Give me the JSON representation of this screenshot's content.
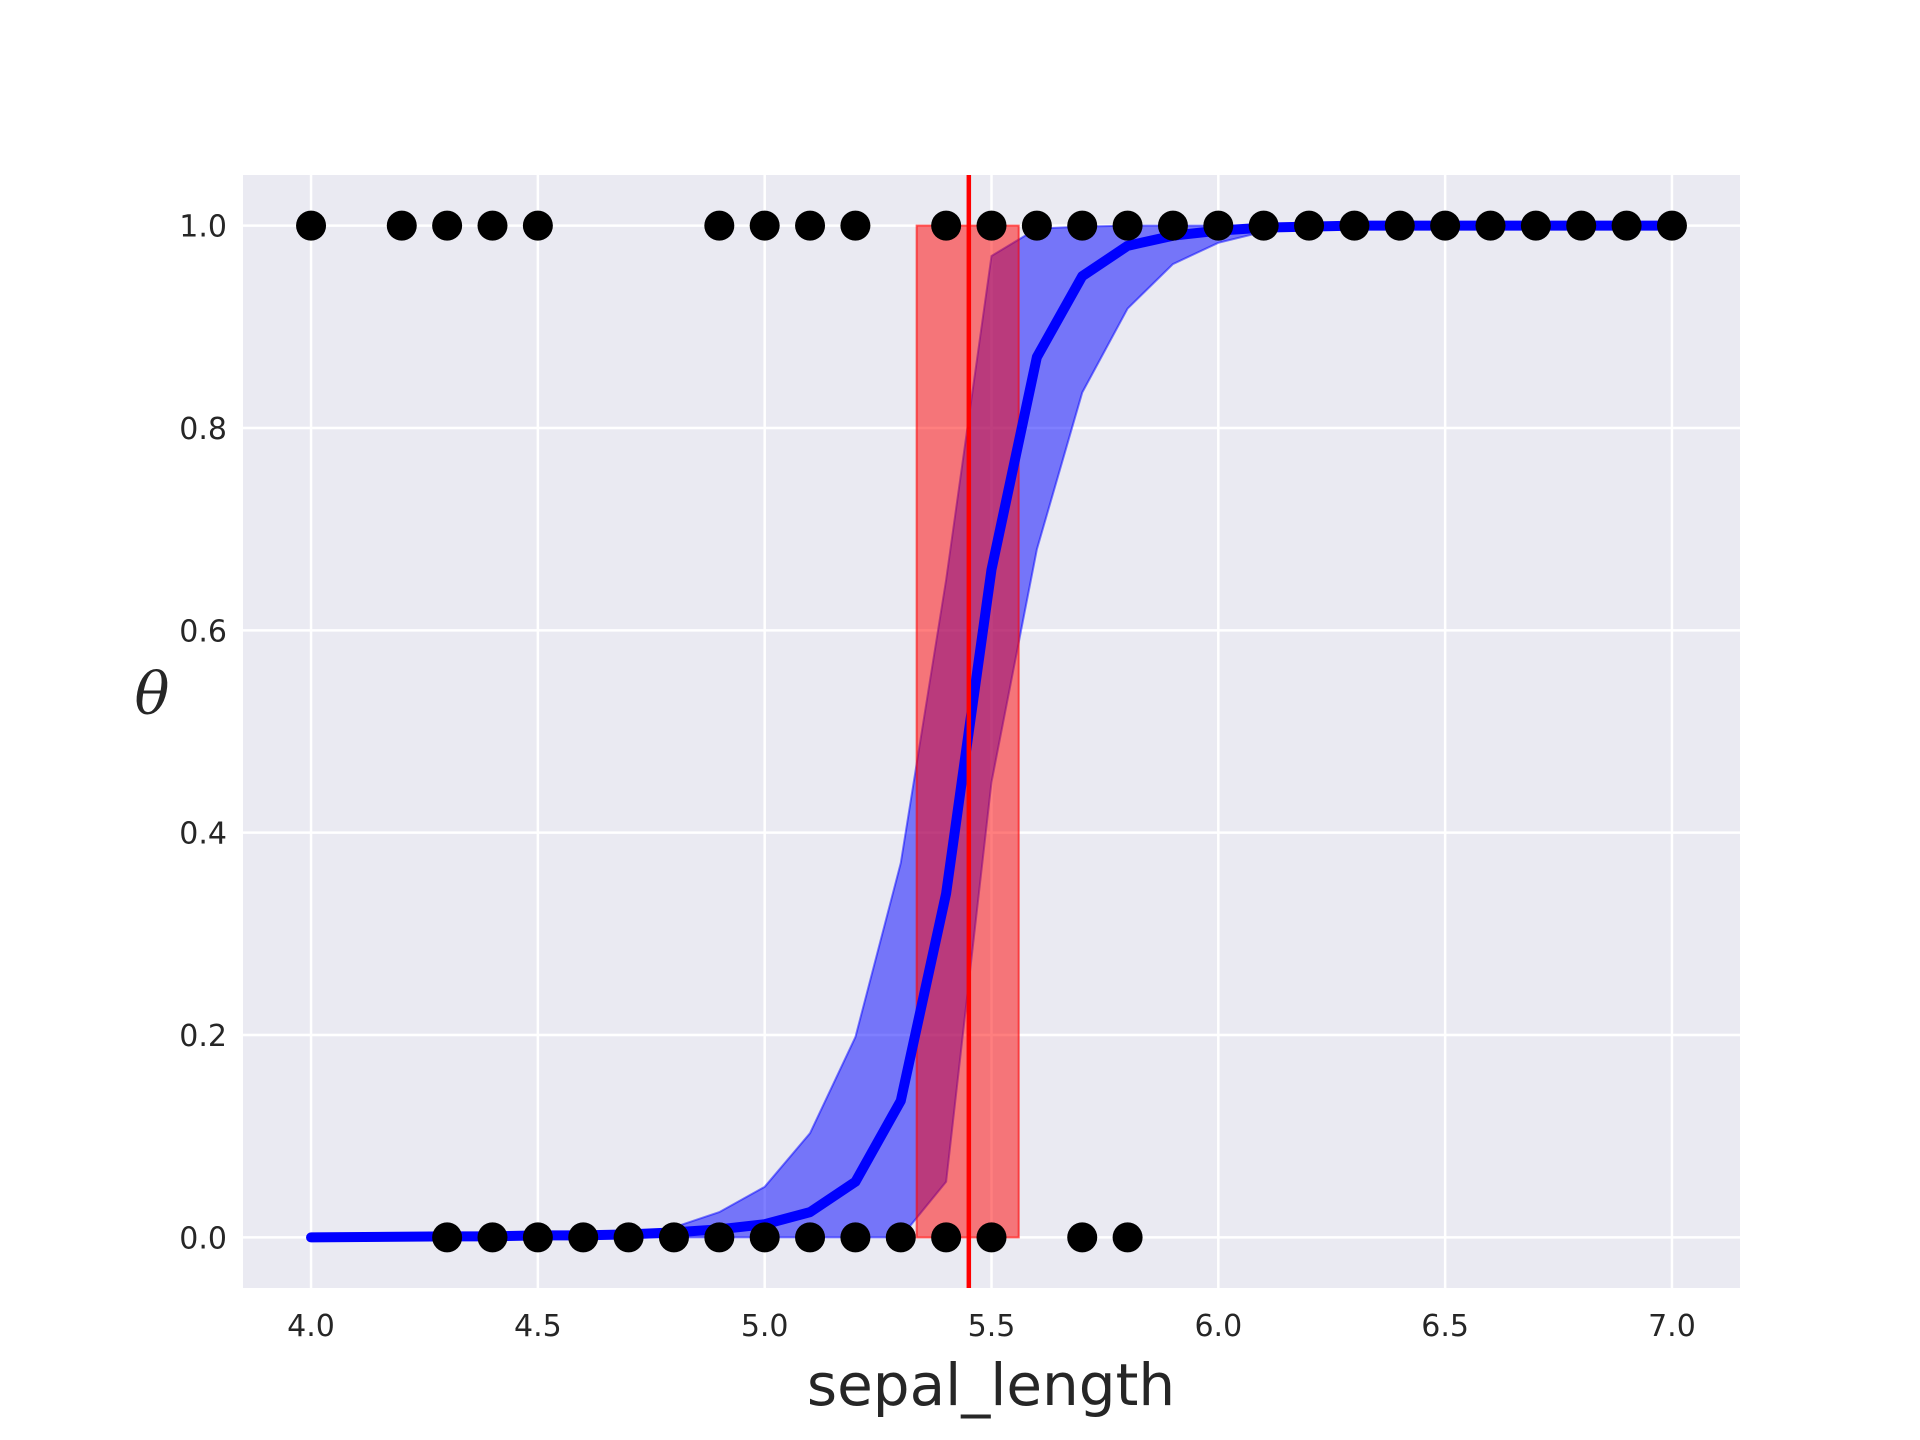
{
  "chart_data": {
    "type": "line",
    "title": "",
    "xlabel": "sepal_length",
    "ylabel": "θ",
    "xlim": [
      3.85,
      7.15
    ],
    "ylim": [
      -0.05,
      1.05
    ],
    "xticks": [
      "4.0",
      "4.5",
      "5.0",
      "5.5",
      "6.0",
      "6.5",
      "7.0"
    ],
    "yticks": [
      "0.0",
      "0.2",
      "0.4",
      "0.6",
      "0.8",
      "1.0"
    ],
    "grid": true,
    "legend": "none",
    "colors": {
      "background": "#eaeaf2",
      "grid": "#ffffff",
      "mean_line": "#0000ff",
      "band": "#0000ff",
      "boundary_line": "#ff0000",
      "boundary_band": "#ff0000",
      "points": "#000000"
    },
    "mean_curve": {
      "x": [
        4.0,
        4.3,
        4.4,
        4.5,
        4.6,
        4.7,
        4.8,
        4.9,
        5.0,
        5.1,
        5.2,
        5.3,
        5.4,
        5.5,
        5.6,
        5.7,
        5.8,
        5.9,
        6.0,
        6.1,
        6.2,
        6.3,
        6.4,
        6.5,
        6.6,
        6.7,
        6.8,
        6.9,
        7.0
      ],
      "y": [
        0.0,
        0.001,
        0.001,
        0.002,
        0.002,
        0.003,
        0.005,
        0.008,
        0.013,
        0.025,
        0.055,
        0.135,
        0.34,
        0.66,
        0.87,
        0.95,
        0.98,
        0.99,
        0.995,
        0.998,
        0.999,
        1.0,
        1.0,
        1.0,
        1.0,
        1.0,
        1.0,
        1.0,
        1.0
      ]
    },
    "hpd_band": {
      "x": [
        4.7,
        4.8,
        4.9,
        5.0,
        5.1,
        5.2,
        5.3,
        5.4,
        5.5,
        5.6,
        5.7,
        5.8,
        5.9,
        6.0,
        6.1
      ],
      "lower": [
        0.0,
        0.0,
        0.0,
        0.0,
        0.0,
        0.0,
        0.0,
        0.055,
        0.45,
        0.68,
        0.835,
        0.918,
        0.962,
        0.983,
        0.994
      ],
      "upper": [
        0.0,
        0.01,
        0.025,
        0.05,
        0.103,
        0.198,
        0.37,
        0.65,
        0.97,
        0.997,
        0.999,
        1.0,
        1.0,
        1.0,
        1.0
      ]
    },
    "decision_boundary": {
      "x": 5.45,
      "hpd": [
        5.335,
        5.56
      ]
    },
    "observations": {
      "y1": [
        4.0,
        4.2,
        4.3,
        4.4,
        4.5,
        4.9,
        5.0,
        5.1,
        5.2,
        5.4,
        5.5,
        5.6,
        5.7,
        5.8,
        5.9,
        6.0,
        6.1,
        6.2,
        6.3,
        6.4,
        6.5,
        6.6,
        6.7,
        6.8,
        6.9,
        7.0
      ],
      "y0": [
        4.3,
        4.4,
        4.5,
        4.6,
        4.7,
        4.8,
        4.9,
        5.0,
        5.1,
        5.2,
        5.3,
        5.4,
        5.5,
        5.7,
        5.8
      ]
    }
  }
}
